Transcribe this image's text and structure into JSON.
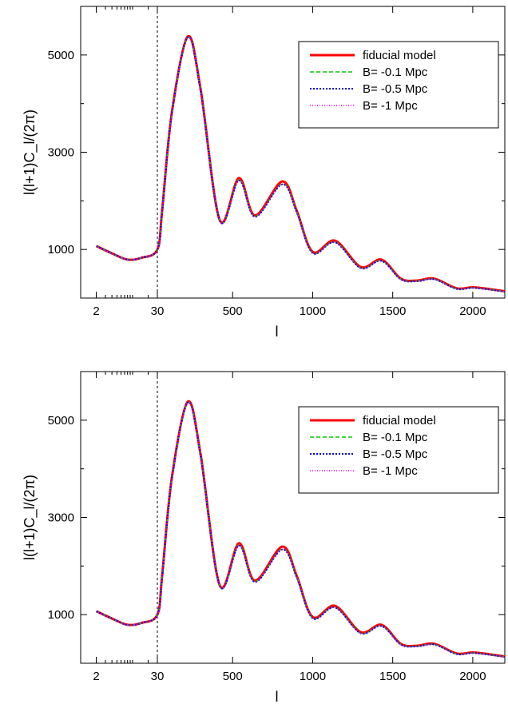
{
  "chart_data": [
    {
      "type": "line",
      "title": "",
      "xlabel": "l",
      "ylabel": "l(l+1)C_l/(2π)",
      "x_scale": "log for l ≤ 30, linear for l > 30",
      "xlim": [
        1,
        2200
      ],
      "ylim": [
        0,
        6000
      ],
      "x_ticks": [
        {
          "value": 2,
          "label": "2"
        },
        {
          "value": 30,
          "label": "30"
        },
        {
          "value": 500,
          "label": "500"
        },
        {
          "value": 1000,
          "label": "1000"
        },
        {
          "value": 1500,
          "label": "1500"
        },
        {
          "value": 2000,
          "label": "2000"
        }
      ],
      "y_ticks": [
        {
          "value": 1000,
          "label": "1000"
        },
        {
          "value": 3000,
          "label": "3000"
        },
        {
          "value": 5000,
          "label": "5000"
        }
      ],
      "vline": 30,
      "grid": false,
      "legend_position": "top-right",
      "series": [
        {
          "name": "fiducial model",
          "color": "#ff0000",
          "dash": "solid",
          "x": [
            2,
            4,
            8,
            15,
            30,
            60,
            120,
            220,
            300,
            420,
            540,
            640,
            810,
            900,
            1000,
            1140,
            1300,
            1430,
            1550,
            1650,
            1760,
            1900,
            2010,
            2200
          ],
          "y": [
            1070,
            920,
            790,
            830,
            1000,
            1800,
            3800,
            5380,
            4300,
            1600,
            2470,
            1700,
            2400,
            1800,
            950,
            1180,
            640,
            790,
            400,
            360,
            400,
            200,
            220,
            140
          ]
        },
        {
          "name": "B= -0.1 Mpc",
          "color": "#00cc00",
          "dash": "dashed",
          "x": [
            2,
            4,
            8,
            15,
            30,
            60,
            120,
            220,
            300,
            420,
            540,
            640,
            810,
            900,
            1000,
            1140,
            1300,
            1430,
            1550,
            1650,
            1760,
            1900,
            2010,
            2200
          ],
          "y": [
            1070,
            920,
            790,
            830,
            1000,
            1790,
            3780,
            5360,
            4280,
            1590,
            2430,
            1680,
            2350,
            1780,
            930,
            1150,
            620,
            770,
            390,
            350,
            390,
            190,
            210,
            135
          ]
        },
        {
          "name": "B= -0.5 Mpc",
          "color": "#0000cc",
          "dash": "dotted",
          "x": [
            2,
            4,
            8,
            15,
            30,
            60,
            120,
            220,
            300,
            420,
            540,
            640,
            810,
            900,
            1000,
            1140,
            1300,
            1430,
            1550,
            1650,
            1760,
            1900,
            2010,
            2200
          ],
          "y": [
            1070,
            920,
            790,
            830,
            1000,
            1790,
            3780,
            5360,
            4280,
            1590,
            2420,
            1670,
            2340,
            1770,
            925,
            1145,
            615,
            765,
            385,
            345,
            385,
            188,
            208,
            132
          ]
        },
        {
          "name": "B= -1 Mpc",
          "color": "#ff00ff",
          "dash": "dotted-fine",
          "x": [
            2,
            4,
            8,
            15,
            30,
            60,
            120,
            220,
            300,
            420,
            540,
            640,
            810,
            900,
            1000,
            1140,
            1300,
            1430,
            1550,
            1650,
            1760,
            1900,
            2010,
            2200
          ],
          "y": [
            1070,
            920,
            790,
            830,
            1000,
            1790,
            3780,
            5360,
            4280,
            1590,
            2425,
            1675,
            2345,
            1775,
            928,
            1148,
            618,
            768,
            388,
            348,
            388,
            190,
            210,
            134
          ]
        }
      ]
    },
    {
      "type": "line",
      "title": "",
      "xlabel": "l",
      "ylabel": "l(l+1)C_l/(2π)",
      "x_scale": "log for l ≤ 30, linear for l > 30",
      "xlim": [
        1,
        2200
      ],
      "ylim": [
        0,
        6000
      ],
      "x_ticks": [
        {
          "value": 2,
          "label": "2"
        },
        {
          "value": 30,
          "label": "30"
        },
        {
          "value": 500,
          "label": "500"
        },
        {
          "value": 1000,
          "label": "1000"
        },
        {
          "value": 1500,
          "label": "1500"
        },
        {
          "value": 2000,
          "label": "2000"
        }
      ],
      "y_ticks": [
        {
          "value": 1000,
          "label": "1000"
        },
        {
          "value": 3000,
          "label": "3000"
        },
        {
          "value": 5000,
          "label": "5000"
        }
      ],
      "vline": 30,
      "grid": false,
      "legend_position": "top-right",
      "series": [
        {
          "name": "fiducial model",
          "color": "#ff0000",
          "dash": "solid",
          "x": [
            2,
            4,
            8,
            15,
            30,
            60,
            120,
            220,
            300,
            420,
            540,
            640,
            810,
            900,
            1000,
            1140,
            1300,
            1430,
            1550,
            1650,
            1760,
            1900,
            2010,
            2200
          ],
          "y": [
            1070,
            920,
            790,
            830,
            1000,
            1800,
            3800,
            5380,
            4300,
            1600,
            2470,
            1700,
            2400,
            1800,
            950,
            1180,
            640,
            790,
            400,
            360,
            400,
            200,
            220,
            140
          ]
        },
        {
          "name": "B= -0.1 Mpc",
          "color": "#00cc00",
          "dash": "dashed",
          "x": [
            2,
            4,
            8,
            15,
            30,
            60,
            120,
            220,
            300,
            420,
            540,
            640,
            810,
            900,
            1000,
            1140,
            1300,
            1430,
            1550,
            1650,
            1760,
            1900,
            2010,
            2200
          ],
          "y": [
            1070,
            920,
            790,
            830,
            1000,
            1790,
            3780,
            5360,
            4280,
            1590,
            2430,
            1680,
            2350,
            1780,
            930,
            1150,
            620,
            770,
            390,
            350,
            390,
            190,
            210,
            135
          ]
        },
        {
          "name": "B= -0.5 Mpc",
          "color": "#0000cc",
          "dash": "dotted",
          "x": [
            2,
            4,
            8,
            15,
            30,
            60,
            120,
            220,
            300,
            420,
            540,
            640,
            810,
            900,
            1000,
            1140,
            1300,
            1430,
            1550,
            1650,
            1760,
            1900,
            2010,
            2200
          ],
          "y": [
            1070,
            920,
            790,
            830,
            1000,
            1790,
            3780,
            5360,
            4280,
            1590,
            2420,
            1670,
            2340,
            1770,
            925,
            1145,
            615,
            765,
            385,
            345,
            385,
            188,
            208,
            132
          ]
        },
        {
          "name": "B= -1 Mpc",
          "color": "#ff00ff",
          "dash": "dotted-fine",
          "x": [
            2,
            4,
            8,
            15,
            30,
            60,
            120,
            220,
            300,
            420,
            540,
            640,
            810,
            900,
            1000,
            1140,
            1300,
            1430,
            1550,
            1650,
            1760,
            1900,
            2010,
            2200
          ],
          "y": [
            1070,
            920,
            790,
            830,
            1000,
            1790,
            3780,
            5360,
            4280,
            1590,
            2425,
            1675,
            2345,
            1775,
            928,
            1148,
            618,
            768,
            388,
            348,
            388,
            190,
            210,
            134
          ]
        }
      ]
    }
  ]
}
